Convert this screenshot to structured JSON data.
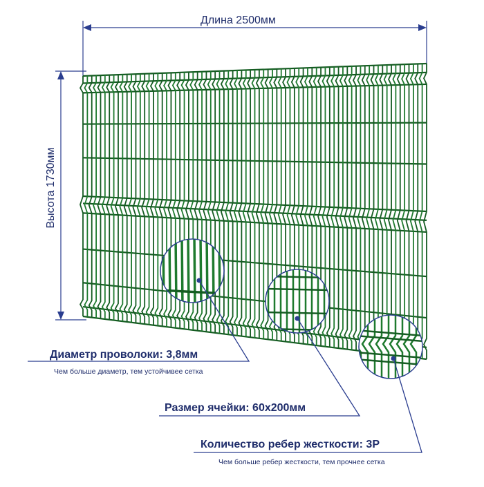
{
  "dimensions": {
    "width_label": "Длина 2500мм",
    "height_label": "Высота 1730мм"
  },
  "callouts": [
    {
      "title": "Диаметр проволоки: 3,8мм",
      "note": "Чем больше диаметр, тем устойчивее сетка"
    },
    {
      "title": "Размер ячейки: 60х200мм",
      "note": ""
    },
    {
      "title": "Количество ребер жесткости: 3Р",
      "note": "Чем больше ребер жесткости, тем прочнее сетка"
    }
  ],
  "colors": {
    "mesh": "#1e7a2e",
    "mesh_dark": "#155c22",
    "annotation": "#1f2d6b",
    "dimension_line": "#2a3d8f"
  }
}
